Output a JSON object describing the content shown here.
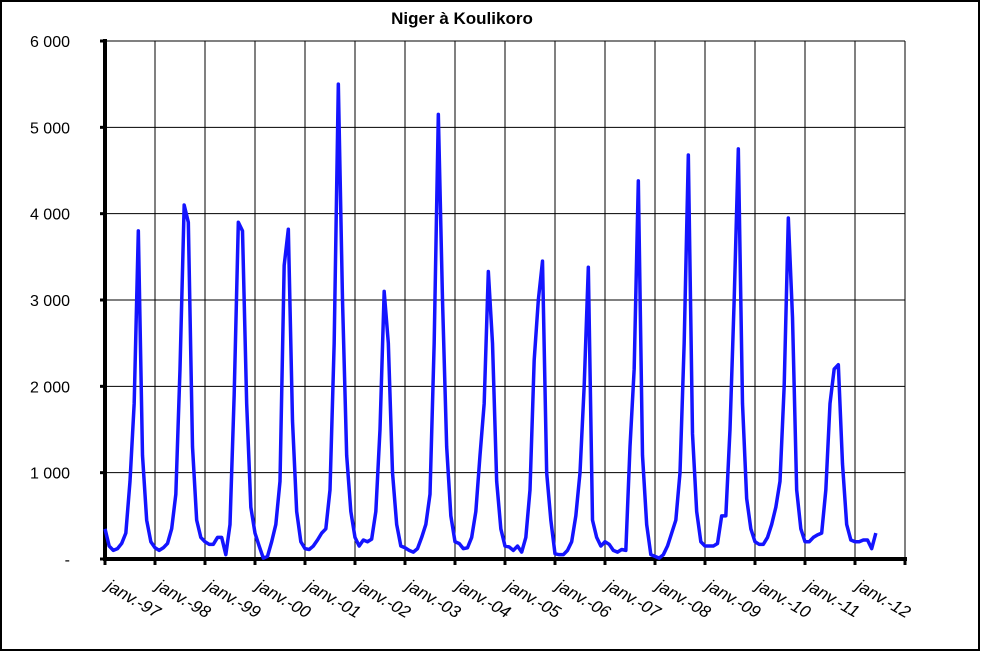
{
  "chart_data": {
    "type": "line",
    "title": "Niger à Koulikoro",
    "x": [
      "1997-01",
      "1997-02",
      "1997-03",
      "1997-04",
      "1997-05",
      "1997-06",
      "1997-07",
      "1997-08",
      "1997-09",
      "1997-10",
      "1997-11",
      "1997-12",
      "1998-01",
      "1998-02",
      "1998-03",
      "1998-04",
      "1998-05",
      "1998-06",
      "1998-07",
      "1998-08",
      "1998-09",
      "1998-10",
      "1998-11",
      "1998-12",
      "1999-01",
      "1999-02",
      "1999-03",
      "1999-04",
      "1999-05",
      "1999-06",
      "1999-07",
      "1999-08",
      "1999-09",
      "1999-10",
      "1999-11",
      "1999-12",
      "2000-01",
      "2000-02",
      "2000-03",
      "2000-04",
      "2000-05",
      "2000-06",
      "2000-07",
      "2000-08",
      "2000-09",
      "2000-10",
      "2000-11",
      "2000-12",
      "2001-01",
      "2001-02",
      "2001-03",
      "2001-04",
      "2001-05",
      "2001-06",
      "2001-07",
      "2001-08",
      "2001-09",
      "2001-10",
      "2001-11",
      "2001-12",
      "2002-01",
      "2002-02",
      "2002-03",
      "2002-04",
      "2002-05",
      "2002-06",
      "2002-07",
      "2002-08",
      "2002-09",
      "2002-10",
      "2002-11",
      "2002-12",
      "2003-01",
      "2003-02",
      "2003-03",
      "2003-04",
      "2003-05",
      "2003-06",
      "2003-07",
      "2003-08",
      "2003-09",
      "2003-10",
      "2003-11",
      "2003-12",
      "2004-01",
      "2004-02",
      "2004-03",
      "2004-04",
      "2004-05",
      "2004-06",
      "2004-07",
      "2004-08",
      "2004-09",
      "2004-10",
      "2004-11",
      "2004-12",
      "2005-01",
      "2005-02",
      "2005-03",
      "2005-04",
      "2005-05",
      "2005-06",
      "2005-07",
      "2005-08",
      "2005-09",
      "2005-10",
      "2005-11",
      "2005-12",
      "2006-01",
      "2006-02",
      "2006-03",
      "2006-04",
      "2006-05",
      "2006-06",
      "2006-07",
      "2006-08",
      "2006-09",
      "2006-10",
      "2006-11",
      "2006-12",
      "2007-01",
      "2007-02",
      "2007-03",
      "2007-04",
      "2007-05",
      "2007-06",
      "2007-07",
      "2007-08",
      "2007-09",
      "2007-10",
      "2007-11",
      "2007-12",
      "2008-01",
      "2008-02",
      "2008-03",
      "2008-04",
      "2008-05",
      "2008-06",
      "2008-07",
      "2008-08",
      "2008-09",
      "2008-10",
      "2008-11",
      "2008-12",
      "2009-01",
      "2009-02",
      "2009-03",
      "2009-04",
      "2009-05",
      "2009-06",
      "2009-07",
      "2009-08",
      "2009-09",
      "2009-10",
      "2009-11",
      "2009-12",
      "2010-01",
      "2010-02",
      "2010-03",
      "2010-04",
      "2010-05",
      "2010-06",
      "2010-07",
      "2010-08",
      "2010-09",
      "2010-10",
      "2010-11",
      "2010-12",
      "2011-01",
      "2011-02",
      "2011-03",
      "2011-04",
      "2011-05",
      "2011-06",
      "2011-07",
      "2011-08",
      "2011-09",
      "2011-10",
      "2011-11",
      "2011-12",
      "2012-01",
      "2012-02",
      "2012-03",
      "2012-04",
      "2012-05",
      "2012-06"
    ],
    "series": [
      {
        "color": "#1414ff",
        "values": [
          350,
          150,
          100,
          120,
          180,
          300,
          900,
          1800,
          3800,
          1200,
          450,
          200,
          130,
          100,
          130,
          180,
          350,
          750,
          2200,
          4100,
          3900,
          1300,
          450,
          250,
          200,
          170,
          170,
          250,
          250,
          50,
          400,
          1900,
          3900,
          3800,
          1800,
          600,
          300,
          150,
          10,
          30,
          200,
          400,
          900,
          3400,
          3820,
          1600,
          550,
          200,
          120,
          110,
          150,
          220,
          300,
          350,
          800,
          2500,
          5500,
          3000,
          1200,
          550,
          250,
          150,
          220,
          200,
          230,
          550,
          1500,
          3100,
          2500,
          1000,
          400,
          150,
          130,
          100,
          80,
          120,
          250,
          400,
          750,
          2500,
          5150,
          3000,
          1300,
          500,
          200,
          180,
          120,
          130,
          250,
          550,
          1200,
          1800,
          3330,
          2500,
          900,
          350,
          150,
          140,
          100,
          150,
          80,
          250,
          800,
          2300,
          3000,
          3450,
          1000,
          450,
          60,
          50,
          50,
          100,
          200,
          500,
          1000,
          2000,
          3380,
          450,
          250,
          150,
          200,
          170,
          100,
          80,
          110,
          100,
          1300,
          2200,
          4380,
          1200,
          400,
          50,
          30,
          10,
          50,
          150,
          300,
          450,
          1000,
          2500,
          4680,
          1450,
          550,
          200,
          150,
          150,
          150,
          180,
          500,
          500,
          1500,
          3000,
          4750,
          1800,
          700,
          350,
          200,
          170,
          170,
          250,
          400,
          600,
          900,
          2000,
          3950,
          2800,
          800,
          350,
          200,
          200,
          250,
          280,
          300,
          800,
          1800,
          2200,
          2250,
          1100,
          400,
          220,
          200,
          200,
          220,
          220,
          120,
          300
        ]
      }
    ],
    "xlim": [
      "1997-01",
      "2013-01"
    ],
    "xticks": [
      {
        "value": "1997-01",
        "label": "janv.-97"
      },
      {
        "value": "1998-01",
        "label": "janv.-98"
      },
      {
        "value": "1999-01",
        "label": "janv.-99"
      },
      {
        "value": "2000-01",
        "label": "janv.-00"
      },
      {
        "value": "2001-01",
        "label": "janv.-01"
      },
      {
        "value": "2002-01",
        "label": "janv.-02"
      },
      {
        "value": "2003-01",
        "label": "janv.-03"
      },
      {
        "value": "2004-01",
        "label": "janv.-04"
      },
      {
        "value": "2005-01",
        "label": "janv.-05"
      },
      {
        "value": "2006-01",
        "label": "janv.-06"
      },
      {
        "value": "2007-01",
        "label": "janv.-07"
      },
      {
        "value": "2008-01",
        "label": "janv.-08"
      },
      {
        "value": "2009-01",
        "label": "janv.-09"
      },
      {
        "value": "2010-01",
        "label": "janv.-10"
      },
      {
        "value": "2011-01",
        "label": "janv.-11"
      },
      {
        "value": "2012-01",
        "label": "janv.-12"
      }
    ],
    "ylim": [
      0,
      6000
    ],
    "yticks": [
      {
        "value": 0,
        "label": "-"
      },
      {
        "value": 1000,
        "label": "1 000"
      },
      {
        "value": 2000,
        "label": "2 000"
      },
      {
        "value": 3000,
        "label": "3 000"
      },
      {
        "value": 4000,
        "label": "4 000"
      },
      {
        "value": 5000,
        "label": "5 000"
      },
      {
        "value": 6000,
        "label": "6 000"
      }
    ],
    "grid": true
  }
}
